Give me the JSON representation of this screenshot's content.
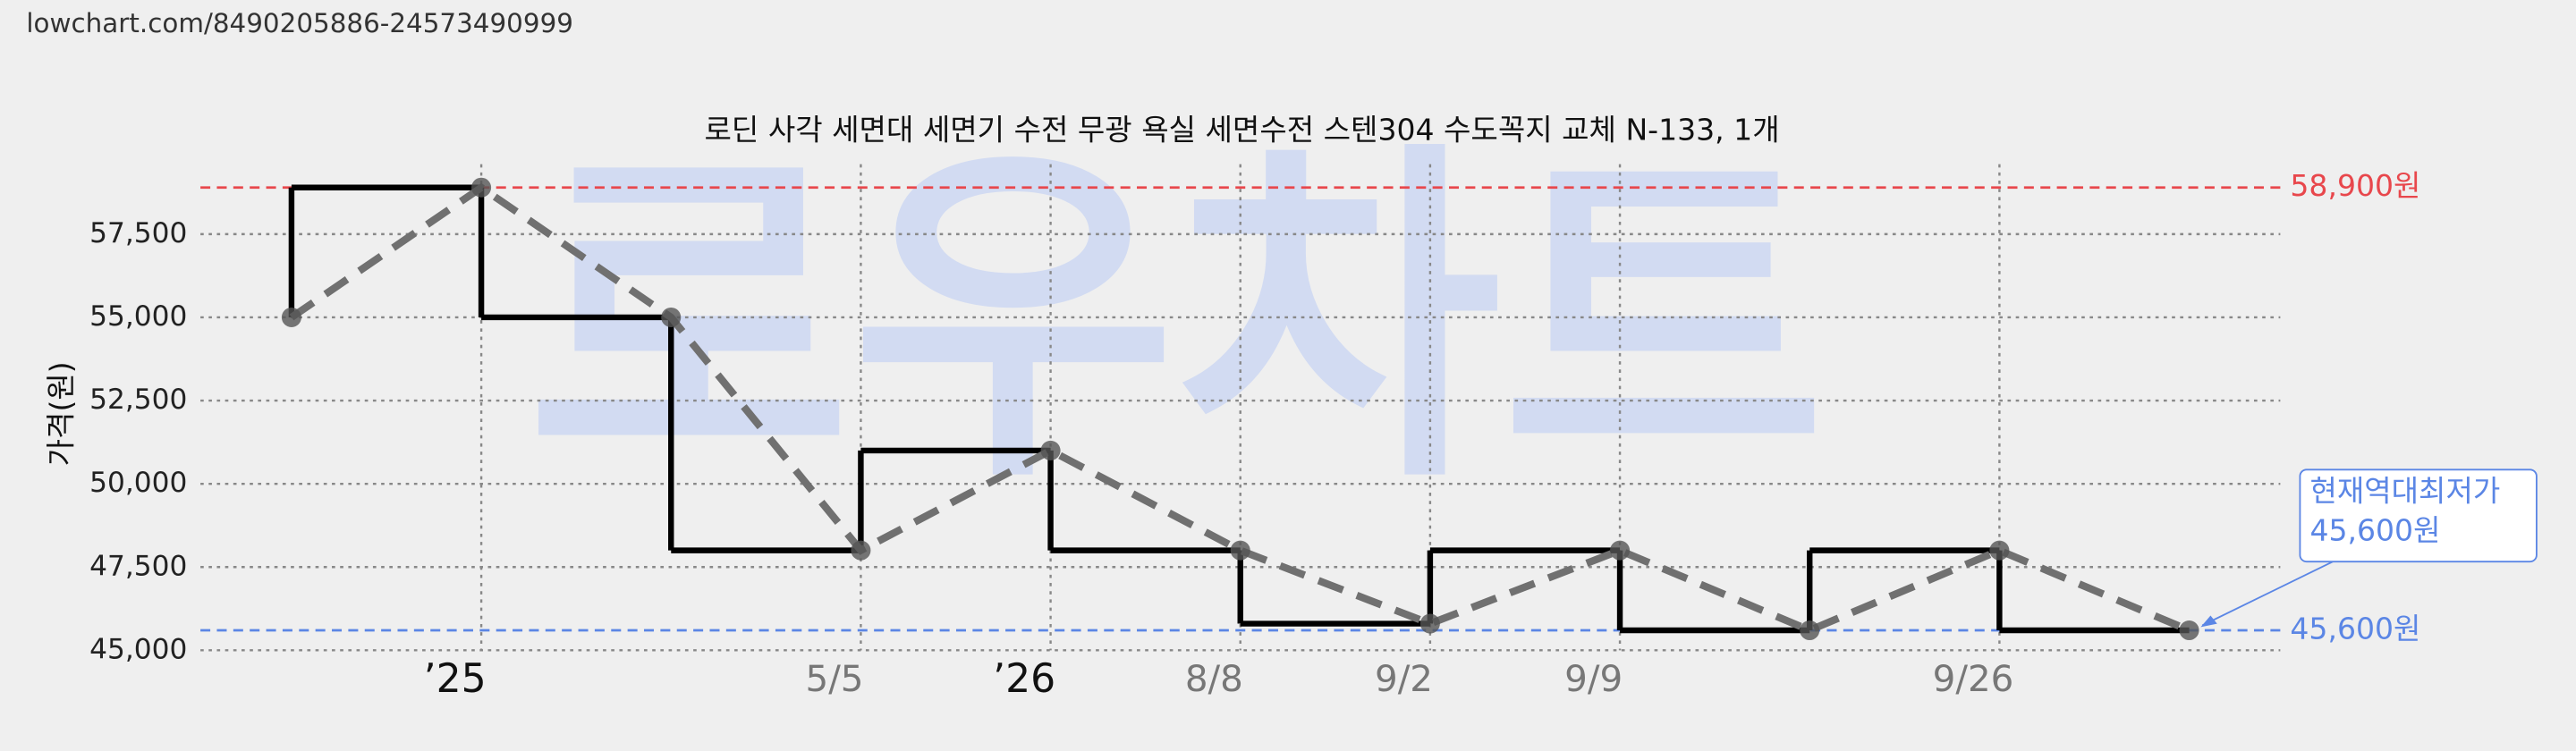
{
  "url": "lowchart.com/8490205886-24573490999",
  "watermark": "로우차트",
  "chart_data": {
    "type": "line",
    "title": "로딘 사각 세면대 세면기 수전 무광 욕실 세면수전 스텐304 수도꼭지 교체 N-133, 1개",
    "y_label": "가격(원)",
    "categories": [
      null,
      "’25",
      null,
      "5/5",
      "’26",
      "8/8",
      "9/2",
      "9/9",
      null,
      "9/26",
      null
    ],
    "major_categories": [
      "’25",
      "’26"
    ],
    "series": [
      {
        "color": "#707070",
        "values": [
          55000,
          58900,
          55000,
          48000,
          51000,
          48000,
          45800,
          48000,
          45600,
          48000,
          45600
        ]
      }
    ],
    "step_color": "#000000",
    "ylim": [
      45000,
      59600
    ],
    "yticks": [
      {
        "value": 45000,
        "label": "45,000"
      },
      {
        "value": 47500,
        "label": "47,500"
      },
      {
        "value": 50000,
        "label": "50,000"
      },
      {
        "value": 52500,
        "label": "52,500"
      },
      {
        "value": 55000,
        "label": "55,000"
      },
      {
        "value": 57500,
        "label": "57,500"
      }
    ],
    "grid": true,
    "ref_lines": [
      {
        "value": 58900,
        "label": "58,900원",
        "color": "#e8474c"
      },
      {
        "value": 45600,
        "label": "45,600원",
        "color": "#5b86e5"
      }
    ],
    "annotation": {
      "lines": [
        "현재역대최저가",
        "45,600원"
      ],
      "color": "#5b86e5"
    }
  }
}
